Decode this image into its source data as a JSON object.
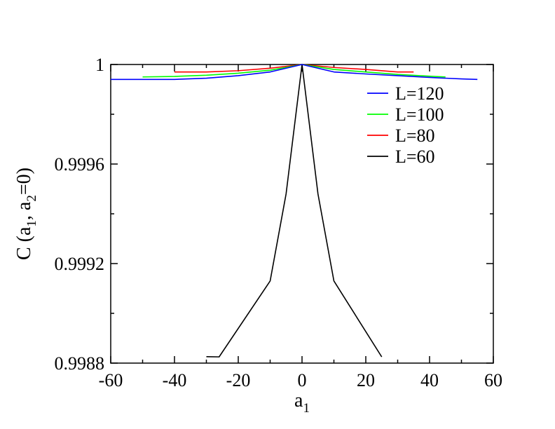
{
  "chart_data": {
    "type": "line",
    "title": "",
    "xlabel": "a",
    "xlabel_sub": "1",
    "ylabel_parts": [
      "C (a",
      "1",
      ", a",
      "2",
      "=0)"
    ],
    "xlim": [
      -60,
      60
    ],
    "ylim": [
      0.9988,
      1.0
    ],
    "xticks": [
      -60,
      -40,
      -20,
      0,
      20,
      40,
      60
    ],
    "xtick_labels": [
      "-60",
      "-40",
      "-20",
      "0",
      "20",
      "40",
      "60"
    ],
    "yticks": [
      0.9988,
      0.9992,
      0.9996,
      1.0
    ],
    "ytick_labels": [
      "0.9988",
      "0.9992",
      "0.9996",
      "1"
    ],
    "grid": false,
    "legend_position": "top-right",
    "series": [
      {
        "name": "L=120",
        "color": "#0000ff",
        "x": [
          -60,
          -50,
          -40,
          -30,
          -20,
          -10,
          0,
          10,
          20,
          30,
          40,
          50,
          55
        ],
        "y": [
          0.99994,
          0.99994,
          0.99994,
          0.999945,
          0.999955,
          0.99997,
          1.0,
          0.99997,
          0.999962,
          0.999955,
          0.999948,
          0.999942,
          0.99994
        ]
      },
      {
        "name": "L=100",
        "color": "#00ff00",
        "x": [
          -50,
          -40,
          -30,
          -20,
          -10,
          0,
          10,
          20,
          30,
          40,
          45
        ],
        "y": [
          0.99995,
          0.999952,
          0.999957,
          0.999965,
          0.999977,
          1.0,
          0.99998,
          0.99997,
          0.99996,
          0.999953,
          0.99995
        ]
      },
      {
        "name": "L=80",
        "color": "#ff0000",
        "x": [
          -40,
          -30,
          -20,
          -10,
          0,
          10,
          20,
          30,
          35
        ],
        "y": [
          0.99997,
          0.99997,
          0.999975,
          0.999985,
          1.0,
          0.999988,
          0.99998,
          0.99997,
          0.99997
        ]
      },
      {
        "name": "L=60",
        "color": "#000000",
        "x": [
          -30,
          -26,
          -10,
          -5,
          0,
          5,
          10,
          25
        ],
        "y": [
          0.998826,
          0.998825,
          0.99913,
          0.99948,
          1.0,
          0.99948,
          0.99913,
          0.998825
        ]
      }
    ]
  }
}
